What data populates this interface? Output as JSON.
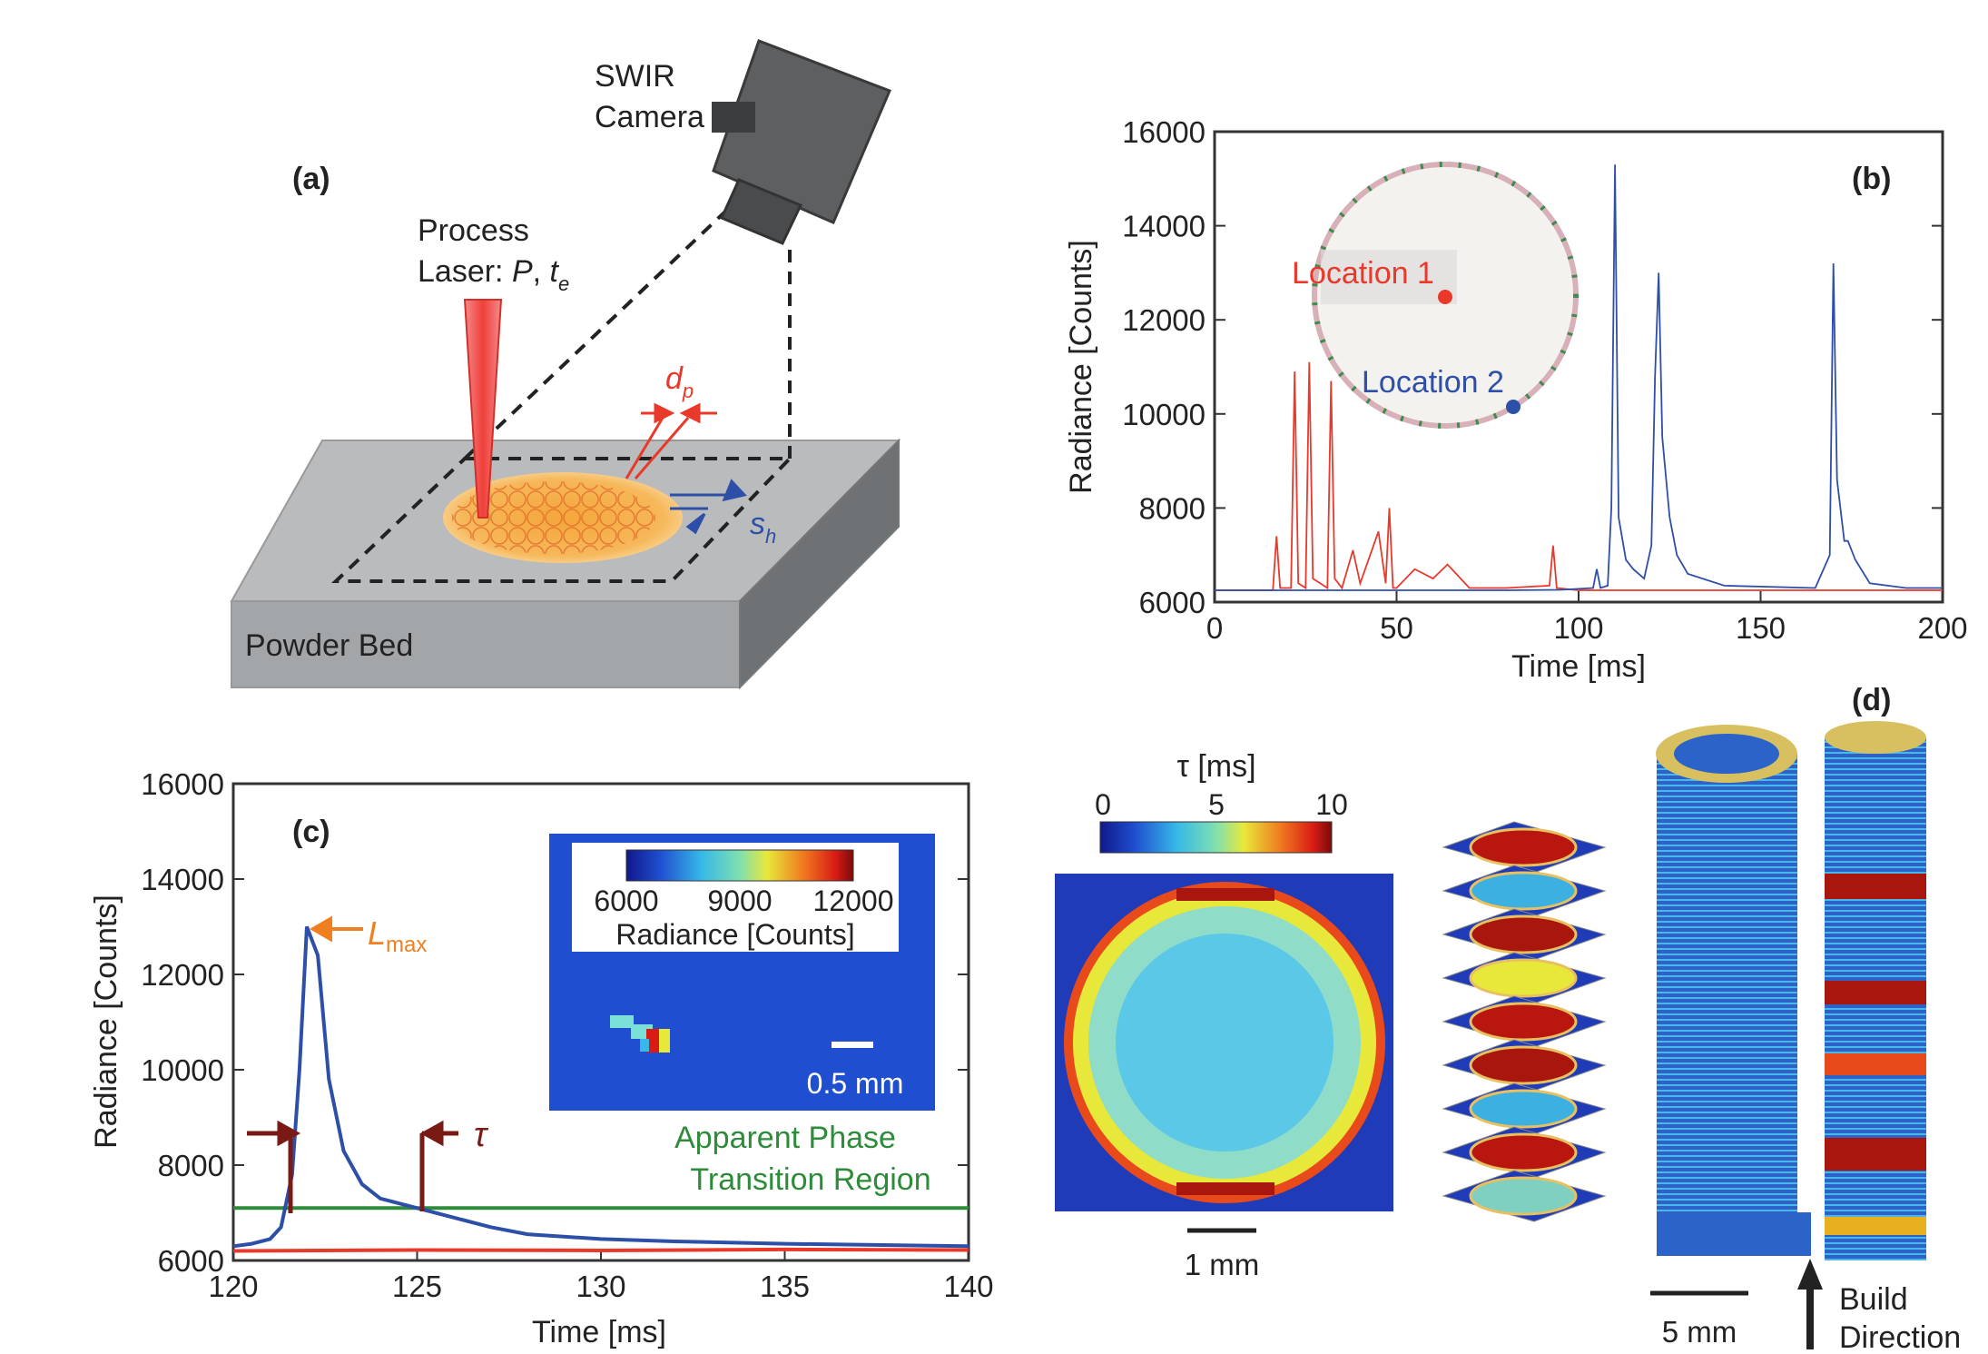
{
  "panels": {
    "a": "(a)",
    "b": "(b)",
    "c": "(c)",
    "d": "(d)"
  },
  "schematic": {
    "camera_line1": "SWIR",
    "camera_line2": "Camera",
    "laser_line1": "Process",
    "laser_line2_prefix": "Laser: ",
    "laser_P": "P",
    "laser_sep": ", ",
    "laser_t": "t",
    "laser_t_sub": "e",
    "dp": "d",
    "dp_sub": "p",
    "sh": "s",
    "sh_sub": "h",
    "bed_label": "Powder Bed"
  },
  "plot_b": {
    "ylabel": "Radiance [Counts]",
    "xlabel": "Time [ms]",
    "xlim": [
      0,
      200
    ],
    "ylim": [
      6000,
      16000
    ],
    "xticks": [
      "0",
      "50",
      "100",
      "150",
      "200"
    ],
    "yticks": [
      "6000",
      "8000",
      "10000",
      "12000",
      "14000",
      "16000"
    ],
    "inset_loc1": "Location 1",
    "inset_loc2": "Location 2",
    "colors": {
      "loc1": "#e8392b",
      "loc2": "#2e4fa8"
    }
  },
  "chart_data": [
    {
      "type": "line",
      "panel": "(b)",
      "xlabel": "Time [ms]",
      "ylabel": "Radiance [Counts]",
      "xlim": [
        0,
        200
      ],
      "ylim": [
        6000,
        16000
      ],
      "series": [
        {
          "name": "Location 1",
          "x": [
            0,
            16,
            17,
            18,
            21,
            22,
            23,
            25,
            26,
            27,
            29,
            31,
            32,
            33,
            35,
            38,
            40,
            45,
            47,
            48,
            49,
            50,
            55,
            60,
            64,
            70,
            80,
            92,
            93,
            94,
            100,
            150,
            200
          ],
          "y": [
            6250,
            6250,
            7400,
            6300,
            6300,
            10900,
            6400,
            6300,
            11100,
            6500,
            6400,
            6300,
            10700,
            6500,
            6300,
            7100,
            6400,
            7500,
            6400,
            8000,
            6300,
            6300,
            6700,
            6500,
            6800,
            6300,
            6300,
            6350,
            7200,
            6300,
            6250,
            6250,
            6250
          ]
        },
        {
          "name": "Location 2",
          "x": [
            0,
            50,
            80,
            95,
            104,
            105,
            106,
            108,
            109,
            110,
            111,
            113,
            115,
            118,
            120,
            121,
            122,
            123,
            125,
            127,
            130,
            140,
            165,
            169,
            170,
            171,
            173,
            174,
            176,
            180,
            190,
            200
          ],
          "y": [
            6250,
            6250,
            6250,
            6260,
            6300,
            6700,
            6300,
            6350,
            8000,
            15300,
            7800,
            6900,
            6700,
            6500,
            7200,
            10800,
            13000,
            9500,
            7800,
            7000,
            6600,
            6350,
            6300,
            7000,
            13200,
            8600,
            7300,
            7300,
            6900,
            6400,
            6300,
            6300
          ]
        }
      ]
    },
    {
      "type": "line",
      "panel": "(c)",
      "xlabel": "Time [ms]",
      "ylabel": "Radiance [Counts]",
      "xlim": [
        120,
        140
      ],
      "ylim": [
        6000,
        16000
      ],
      "series": [
        {
          "name": "Location 2",
          "x": [
            120,
            120.5,
            121,
            121.3,
            121.6,
            121.8,
            122,
            122.3,
            122.6,
            123,
            123.5,
            124,
            124.5,
            125,
            125.5,
            126,
            127,
            128,
            130,
            132,
            135,
            140
          ],
          "y": [
            6300,
            6350,
            6450,
            6700,
            7800,
            10000,
            13000,
            12400,
            9800,
            8300,
            7600,
            7300,
            7200,
            7100,
            7000,
            6900,
            6700,
            6550,
            6450,
            6400,
            6350,
            6300
          ]
        },
        {
          "name": "Location 1",
          "x": [
            120,
            125,
            130,
            135,
            140
          ],
          "y": [
            6200,
            6220,
            6210,
            6230,
            6220
          ]
        }
      ],
      "threshold": 7100
    }
  ],
  "plot_c": {
    "ylabel": "Radiance [Counts]",
    "xlabel": "Time [ms]",
    "xticks": [
      "120",
      "125",
      "130",
      "135",
      "140"
    ],
    "yticks": [
      "6000",
      "8000",
      "10000",
      "12000",
      "14000",
      "16000"
    ],
    "lmax": "L",
    "lmax_sub": "max",
    "tau": "τ",
    "phase_line1": "Apparent Phase",
    "phase_line2": "Transition Region",
    "inset_colorbar_ticks": [
      "6000",
      "9000",
      "12000"
    ],
    "inset_colorbar_label": "Radiance [Counts]",
    "inset_scale": "0.5 mm",
    "colors": {
      "curve": "#2e4fa8",
      "base": "#e8392b",
      "phase": "#2e8b3a",
      "lmax": "#f07f1f",
      "tau": "#7a1a14"
    }
  },
  "panel_d": {
    "colorbar_label": "τ [ms]",
    "colorbar_ticks": [
      "0",
      "5",
      "10"
    ],
    "scale_1mm": "1 mm",
    "scale_5mm": "5 mm",
    "build_line1": "Build",
    "build_line2": "Direction"
  }
}
